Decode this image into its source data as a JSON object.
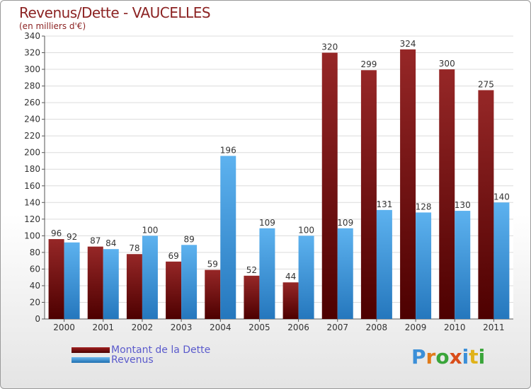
{
  "title": "Revenus/Dette - VAUCELLES",
  "subtitle": "(en milliers d'€)",
  "colors": {
    "dette": "#7a1414",
    "revenus": "#3a97dc",
    "text": "#8c2323",
    "legend_text": "#5a5acc"
  },
  "chart_data": {
    "type": "bar",
    "categories": [
      "2000",
      "2001",
      "2002",
      "2003",
      "2004",
      "2005",
      "2006",
      "2007",
      "2008",
      "2009",
      "2010",
      "2011"
    ],
    "series": [
      {
        "name": "Montant de la Dette",
        "values": [
          96,
          87,
          78,
          69,
          59,
          52,
          44,
          320,
          299,
          324,
          300,
          275
        ]
      },
      {
        "name": "Revenus",
        "values": [
          92,
          84,
          100,
          89,
          196,
          109,
          100,
          109,
          131,
          128,
          130,
          140
        ]
      }
    ],
    "ylim": [
      0,
      340
    ],
    "yticks": [
      0,
      20,
      40,
      60,
      80,
      100,
      120,
      140,
      160,
      180,
      200,
      220,
      240,
      260,
      280,
      300,
      320,
      340
    ],
    "grid": true,
    "legend_position": "bottom-left"
  },
  "legend": [
    {
      "label": "Montant de la Dette"
    },
    {
      "label": "Revenus"
    }
  ],
  "logo": {
    "text": "Proxiti"
  }
}
